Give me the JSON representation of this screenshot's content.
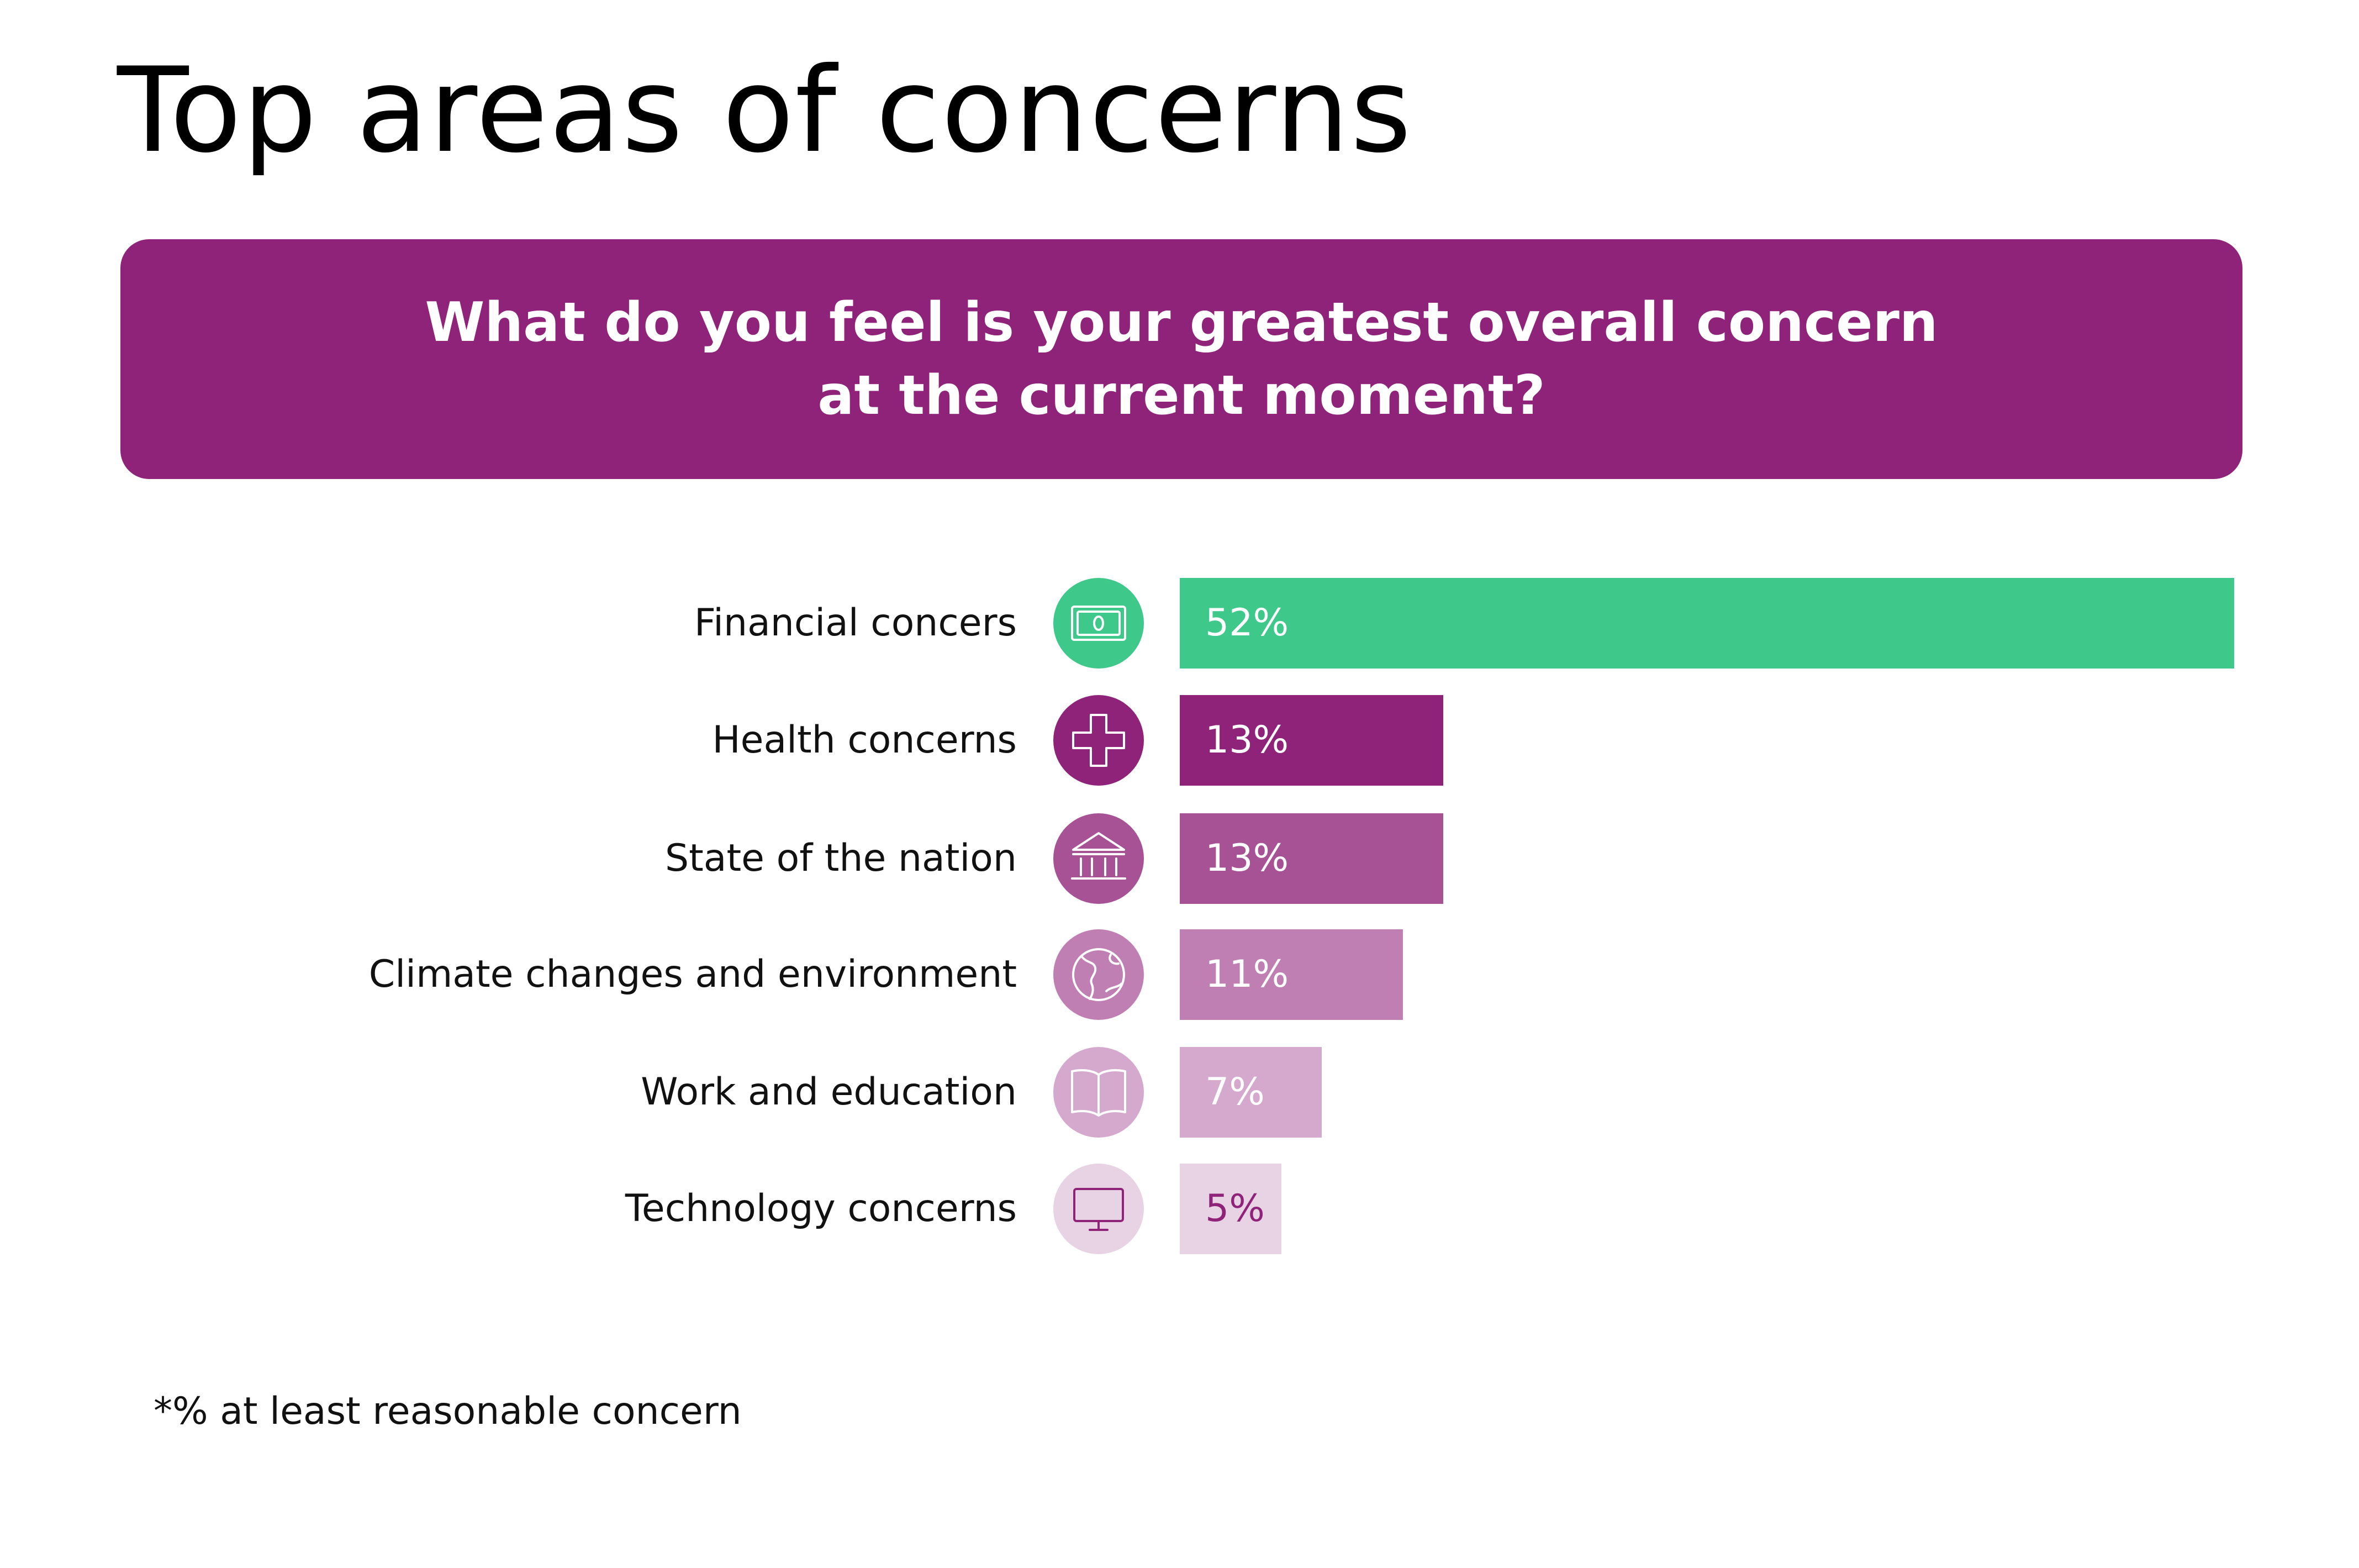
{
  "title": "Top areas of concerns",
  "question": {
    "line1": "What do you feel is your greatest overall concern",
    "line2": "at the current moment?"
  },
  "colors": {
    "banner": "#8e2379",
    "green": "#3ec98b",
    "purple_1": "#8e2379",
    "purple_2": "#a65295",
    "purple_3": "#c07fb3",
    "purple_4": "#d5a9cd",
    "purple_5": "#e8d3e4"
  },
  "chart_data": {
    "type": "bar",
    "orientation": "horizontal",
    "categories": [
      "Financial concers",
      "Health concerns",
      "State of the nation",
      "Climate changes and environment",
      "Work and education",
      "Technology concerns"
    ],
    "values": [
      52,
      13,
      13,
      11,
      7,
      5
    ],
    "value_labels": [
      "52%",
      "13%",
      "13%",
      "11%",
      "7%",
      "5%"
    ],
    "icons": [
      "money-icon",
      "medical-cross-icon",
      "government-building-icon",
      "globe-icon",
      "open-book-icon",
      "monitor-icon"
    ],
    "bar_colors": [
      "#3ec98b",
      "#8e2379",
      "#a65295",
      "#c07fb3",
      "#d5a9cd",
      "#e8d3e4"
    ],
    "value_text_colors": [
      "#ffffff",
      "#ffffff",
      "#ffffff",
      "#ffffff",
      "#ffffff",
      "#8e2379"
    ],
    "grid": false,
    "axes_visible": false
  },
  "footnote": "*% at least reasonable concern"
}
